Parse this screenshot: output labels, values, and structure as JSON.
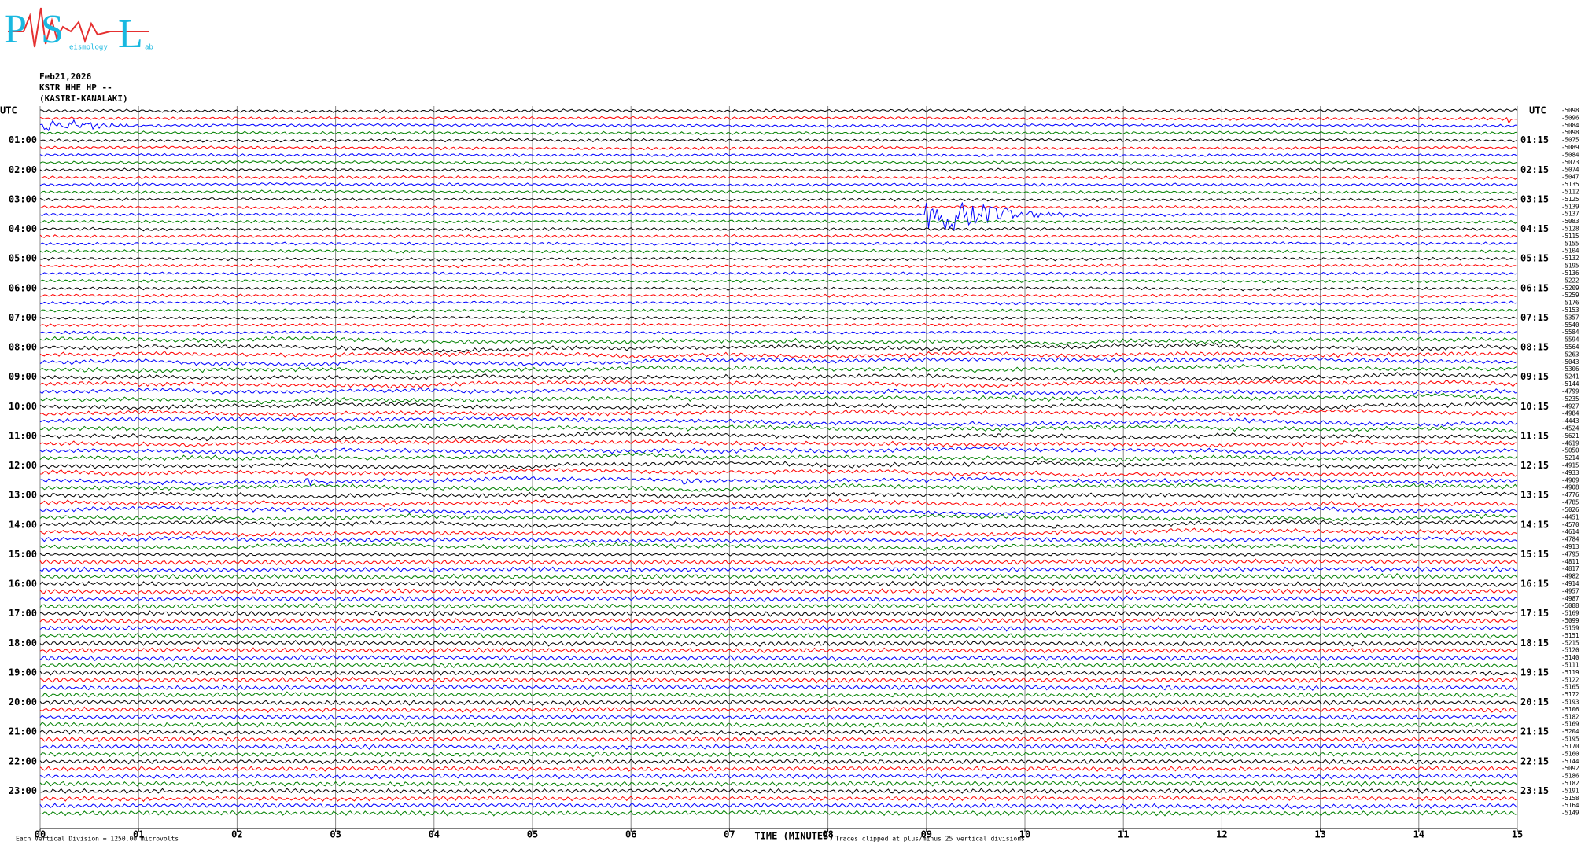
{
  "header": {
    "logo": {
      "letters": [
        "P",
        "S",
        "L"
      ],
      "fragments": [
        "eismology",
        "ab"
      ]
    },
    "date": "Feb21,2026",
    "station": "KSTR HHE HP --",
    "location": "(KASTRI-KANALAKI)"
  },
  "chart_data": {
    "type": "helicorder",
    "left_axis_label": "UTC",
    "right_axis_label": "UTC",
    "hour_labels": [
      "01:00",
      "02:00",
      "03:00",
      "04:00",
      "05:00",
      "06:00",
      "07:00",
      "08:00",
      "09:00",
      "10:00",
      "11:00",
      "12:00",
      "13:00",
      "14:00",
      "15:00",
      "16:00",
      "17:00",
      "18:00",
      "19:00",
      "20:00",
      "21:00",
      "22:00",
      "23:00"
    ],
    "hour_labels_right": [
      "01:15",
      "02:15",
      "03:15",
      "04:15",
      "05:15",
      "06:15",
      "07:15",
      "08:15",
      "09:15",
      "10:15",
      "11:15",
      "12:15",
      "13:15",
      "14:15",
      "15:15",
      "16:15",
      "17:15",
      "18:15",
      "19:15",
      "20:15",
      "21:15",
      "22:15",
      "23:15"
    ],
    "trace_colors": [
      "#000000",
      "#ff0000",
      "#0000ff",
      "#008000"
    ],
    "trace_offsets": [
      -5098,
      -5096,
      -5084,
      -5098,
      -5075,
      -5089,
      -5084,
      -5073,
      -5074,
      -5047,
      -5135,
      -5112,
      -5125,
      -5139,
      -5137,
      -5083,
      -5128,
      -5115,
      -5155,
      -5104,
      -5132,
      -5195,
      -5136,
      -5222,
      -5209,
      -5259,
      -5176,
      -5153,
      -5357,
      -5540,
      -5584,
      -5594,
      -5564,
      -5263,
      -5043,
      -5306,
      -5241,
      -5144,
      -4799,
      -5235,
      -4927,
      -4984,
      -4443,
      -4524,
      -5621,
      -4619,
      -5050,
      -5214,
      -4915,
      -4933,
      -4909,
      -4908,
      -4776,
      -4785,
      -5026,
      -4451,
      -4570,
      -4614,
      -4784,
      -4913,
      -4795,
      -4811,
      -4817,
      -4982,
      -4914,
      -4957,
      -4987,
      -5088,
      -5169,
      -5099,
      -5159,
      -5151,
      -5215,
      -5120,
      -5140,
      -5111,
      -5119,
      -5122,
      -5165,
      -5172,
      -5193,
      -5106,
      -5182,
      -5169,
      -5204,
      -5195,
      -5170,
      -5160,
      -5144,
      -5092,
      -5186,
      -5182,
      -5191,
      -5158,
      -5164,
      -5149
    ],
    "xlim": [
      0,
      15
    ],
    "xticks": [
      {
        "value": 0,
        "label": "00"
      },
      {
        "value": 1,
        "label": "01"
      },
      {
        "value": 2,
        "label": "02"
      },
      {
        "value": 3,
        "label": "03"
      },
      {
        "value": 4,
        "label": "04"
      },
      {
        "value": 5,
        "label": "05"
      },
      {
        "value": 6,
        "label": "06"
      },
      {
        "value": 7,
        "label": "07"
      },
      {
        "value": 8,
        "label": "08"
      },
      {
        "value": 9,
        "label": "09"
      },
      {
        "value": 10,
        "label": "10"
      },
      {
        "value": 11,
        "label": "11"
      },
      {
        "value": 12,
        "label": "12"
      },
      {
        "value": 13,
        "label": "13"
      },
      {
        "value": 14,
        "label": "14"
      },
      {
        "value": 15,
        "label": "15"
      }
    ],
    "xlabel": "TIME (MINUTES)",
    "scale_note": "Each Vertical Division = 1250.00 microvolts",
    "clip_note": "Traces clipped at plus/minus 25 vertical divisions"
  }
}
